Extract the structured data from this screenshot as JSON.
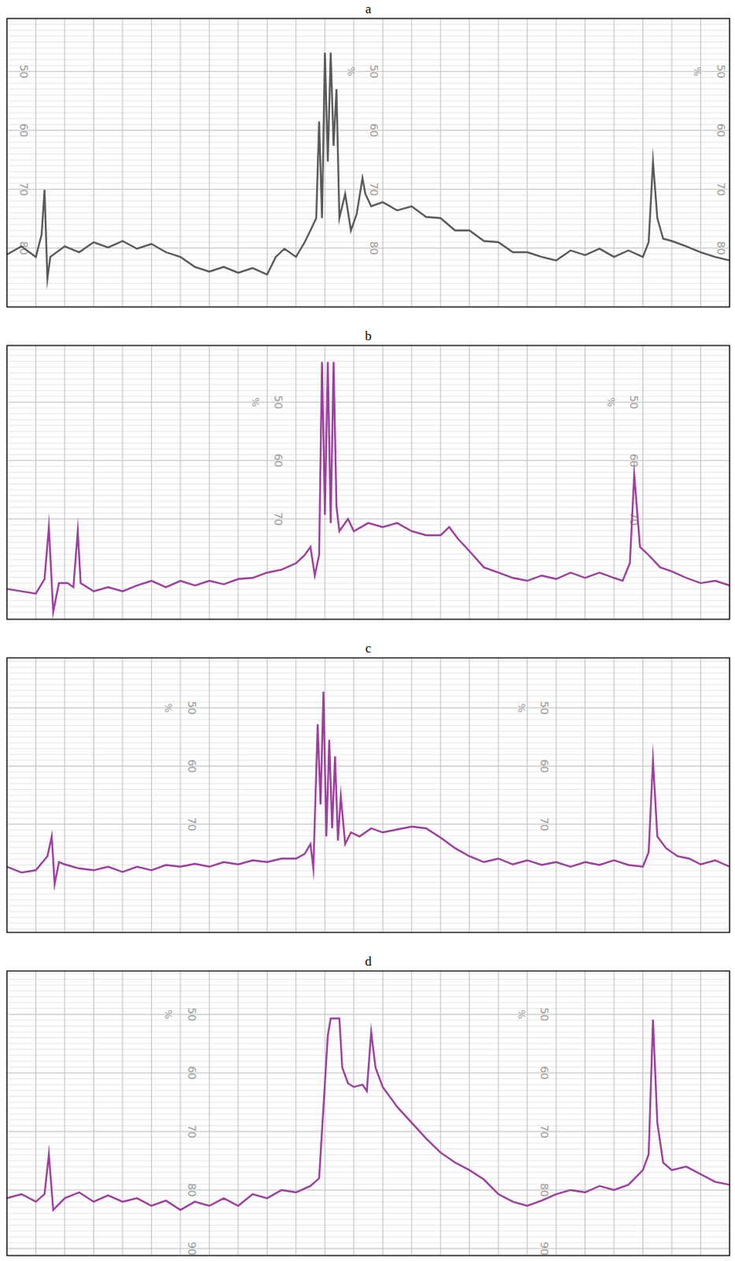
{
  "chart_data": [
    {
      "type": "line",
      "title": "a",
      "color": "#5a5a5a",
      "grid": true,
      "tick_labels": "y",
      "y_label": "%",
      "xlim": [
        0,
        25
      ],
      "xticks": [
        0,
        1,
        2,
        3,
        4,
        5,
        6,
        7,
        8,
        9,
        10,
        11,
        12,
        13,
        14,
        15,
        16,
        17,
        18,
        19,
        20,
        21,
        22,
        23,
        24,
        25
      ],
      "ylim": [
        90,
        41
      ],
      "yticks": [
        50,
        60,
        70,
        80
      ],
      "x": [
        0,
        0.5,
        1,
        1.2,
        1.3,
        1.4,
        1.5,
        2,
        2.5,
        3,
        3.5,
        4,
        4.5,
        5,
        5.5,
        6,
        6.5,
        7,
        7.5,
        8,
        8.5,
        9,
        9.3,
        9.6,
        10,
        10.3,
        10.5,
        10.7,
        10.8,
        10.9,
        11,
        11.1,
        11.2,
        11.3,
        11.4,
        11.5,
        11.7,
        11.9,
        12.1,
        12.3,
        12.4,
        12.6,
        13,
        13.5,
        14,
        14.5,
        15,
        15.5,
        16,
        16.5,
        17,
        17.5,
        18,
        18.5,
        19,
        19.5,
        20,
        20.5,
        21,
        21.5,
        22,
        22.2,
        22.35,
        22.5,
        22.7,
        23,
        23.5,
        24,
        24.5,
        25
      ],
      "values": [
        81.1,
        79.7,
        81.5,
        77.7,
        70.1,
        85.2,
        81.5,
        79.7,
        80.7,
        79.0,
        79.9,
        78.8,
        80.1,
        79.3,
        80.7,
        81.5,
        83.2,
        84.0,
        83.2,
        84.2,
        83.4,
        84.5,
        81.5,
        80.1,
        81.5,
        79.0,
        77.0,
        74.9,
        58.5,
        74.9,
        46.8,
        65.3,
        46.8,
        62.6,
        53.0,
        74.9,
        70.8,
        77.0,
        74.2,
        68.1,
        70.8,
        72.9,
        72.2,
        73.6,
        72.9,
        74.7,
        74.9,
        77.0,
        77.0,
        78.8,
        79.0,
        80.7,
        80.7,
        81.5,
        82.1,
        80.4,
        81.2,
        80.1,
        81.5,
        80.4,
        81.5,
        79.0,
        65.3,
        74.9,
        78.4,
        78.8,
        79.7,
        80.7,
        81.5,
        82.1
      ]
    },
    {
      "type": "line",
      "title": "b",
      "color": "#9c3f9e",
      "grid": true,
      "tick_labels": "y",
      "y_label": "%",
      "xlim": [
        0,
        25
      ],
      "xticks": [
        0,
        1,
        2,
        3,
        4,
        5,
        6,
        7,
        8,
        9,
        10,
        11,
        12,
        13,
        14,
        15,
        16,
        17,
        18,
        19,
        20,
        21,
        22,
        23,
        24,
        25
      ],
      "ylim": [
        87.2,
        40.3
      ],
      "yticks": [
        50,
        60,
        70
      ],
      "x": [
        0,
        0.5,
        1,
        1.3,
        1.45,
        1.6,
        1.8,
        2.1,
        2.3,
        2.45,
        2.55,
        3,
        3.5,
        4,
        4.5,
        5,
        5.5,
        6,
        6.5,
        7,
        7.5,
        8,
        8.5,
        9,
        9.5,
        10,
        10.3,
        10.5,
        10.65,
        10.8,
        10.9,
        11,
        11.1,
        11.2,
        11.3,
        11.4,
        11.5,
        11.8,
        12,
        12.5,
        13,
        13.5,
        14,
        14.5,
        15,
        15.3,
        15.6,
        16,
        16.5,
        17,
        17.5,
        18,
        18.5,
        19,
        19.5,
        20,
        20.5,
        21,
        21.3,
        21.55,
        21.7,
        21.9,
        22.2,
        22.6,
        23,
        23.5,
        24,
        24.5,
        25
      ],
      "values": [
        82.0,
        82.4,
        82.8,
        80.3,
        71.4,
        85.9,
        81.0,
        81.0,
        81.7,
        72.1,
        81.0,
        82.4,
        81.7,
        82.4,
        81.4,
        80.6,
        81.7,
        80.6,
        81.4,
        80.6,
        81.2,
        80.3,
        80.1,
        79.2,
        78.7,
        77.6,
        76.2,
        74.8,
        79.7,
        76.2,
        43.1,
        69.3,
        43.1,
        70.7,
        43.1,
        67.9,
        72.1,
        70.0,
        72.1,
        70.7,
        71.4,
        70.7,
        72.1,
        72.8,
        72.8,
        71.4,
        73.4,
        75.5,
        78.3,
        79.2,
        80.1,
        80.6,
        79.7,
        80.3,
        79.2,
        80.1,
        79.2,
        80.1,
        80.6,
        77.6,
        62.4,
        74.8,
        76.2,
        78.3,
        79.0,
        80.1,
        81.0,
        80.6,
        81.4
      ]
    },
    {
      "type": "line",
      "title": "c",
      "color": "#9c3f9e",
      "grid": true,
      "tick_labels": "y",
      "y_label": "%",
      "xlim": [
        0,
        25
      ],
      "xticks": [
        0,
        1,
        2,
        3,
        4,
        5,
        6,
        7,
        8,
        9,
        10,
        11,
        12,
        13,
        14,
        15,
        16,
        17,
        18,
        19,
        20,
        21,
        22,
        23,
        24,
        25
      ],
      "ylim": [
        88.6,
        41.4
      ],
      "yticks": [
        50,
        60,
        70
      ],
      "x": [
        0,
        0.5,
        1,
        1.4,
        1.55,
        1.65,
        1.8,
        2,
        2.5,
        3,
        3.5,
        4,
        4.5,
        5,
        5.5,
        6,
        6.5,
        7,
        7.5,
        8,
        8.5,
        9,
        9.5,
        10,
        10.3,
        10.5,
        10.6,
        10.75,
        10.85,
        10.95,
        11.05,
        11.15,
        11.25,
        11.35,
        11.45,
        11.55,
        11.7,
        11.9,
        12.2,
        12.6,
        13,
        13.5,
        14,
        14.5,
        15,
        15.5,
        16,
        16.5,
        17,
        17.5,
        18,
        18.5,
        19,
        19.5,
        20,
        20.5,
        21,
        21.5,
        22,
        22.2,
        22.35,
        22.5,
        22.8,
        23.2,
        23.6,
        24,
        24.5,
        25
      ],
      "values": [
        77.3,
        78.3,
        77.9,
        75.5,
        72.1,
        80.3,
        76.5,
        76.9,
        77.6,
        77.9,
        77.3,
        78.2,
        77.3,
        77.9,
        77.0,
        77.3,
        76.8,
        77.3,
        76.5,
        76.9,
        76.2,
        76.5,
        75.9,
        75.9,
        75.1,
        73.4,
        77.6,
        52.8,
        66.6,
        47.2,
        72.1,
        55.5,
        70.7,
        58.3,
        72.8,
        65.2,
        73.4,
        71.4,
        72.1,
        70.7,
        71.4,
        70.9,
        70.4,
        70.7,
        72.3,
        74.1,
        75.5,
        76.5,
        75.9,
        76.9,
        76.2,
        77.0,
        76.5,
        77.3,
        76.5,
        77.0,
        76.2,
        77.0,
        77.3,
        74.8,
        59.0,
        72.1,
        74.1,
        75.5,
        75.9,
        76.9,
        76.2,
        77.3
      ]
    },
    {
      "type": "line",
      "title": "d",
      "color": "#9c3f9e",
      "grid": true,
      "tick_labels": "y",
      "y_label": "%",
      "xlim": [
        0,
        25
      ],
      "xticks": [
        0,
        1,
        2,
        3,
        4,
        5,
        6,
        7,
        8,
        9,
        10,
        11,
        12,
        13,
        14,
        15,
        16,
        17,
        18,
        19,
        20,
        21,
        22,
        23,
        24,
        25
      ],
      "ylim": [
        91.2,
        42.6
      ],
      "yticks": [
        50,
        60,
        70,
        80,
        90
      ],
      "x": [
        0,
        0.5,
        1,
        1.3,
        1.45,
        1.6,
        2,
        2.5,
        3,
        3.5,
        4,
        4.5,
        5,
        5.5,
        6,
        6.5,
        7,
        7.5,
        8,
        8.5,
        9,
        9.5,
        10,
        10.5,
        10.8,
        10.95,
        11.1,
        11.2,
        11.5,
        11.6,
        11.8,
        12,
        12.3,
        12.45,
        12.6,
        12.75,
        13,
        13.5,
        14,
        14.5,
        15,
        15.5,
        16,
        16.5,
        17,
        17.5,
        18,
        18.5,
        19,
        19.5,
        20,
        20.5,
        21,
        21.5,
        22,
        22.2,
        22.35,
        22.5,
        22.7,
        23,
        23.5,
        24,
        24.5,
        25
      ],
      "values": [
        81.4,
        80.7,
        82.0,
        80.7,
        73.9,
        83.4,
        81.4,
        80.4,
        82.0,
        80.9,
        82.0,
        81.4,
        82.7,
        81.8,
        83.4,
        82.0,
        82.7,
        81.4,
        82.7,
        80.7,
        81.4,
        80.0,
        80.4,
        79.3,
        78.0,
        65.8,
        53.6,
        50.7,
        50.7,
        59.1,
        61.8,
        62.4,
        62.0,
        63.1,
        53.0,
        59.1,
        62.4,
        65.8,
        68.5,
        71.2,
        73.6,
        75.3,
        76.6,
        78.2,
        80.7,
        82.0,
        82.7,
        81.8,
        80.7,
        80.0,
        80.4,
        79.3,
        80.0,
        79.1,
        76.6,
        73.9,
        50.9,
        68.5,
        75.3,
        76.6,
        76.0,
        77.3,
        78.6,
        79.1
      ]
    }
  ]
}
